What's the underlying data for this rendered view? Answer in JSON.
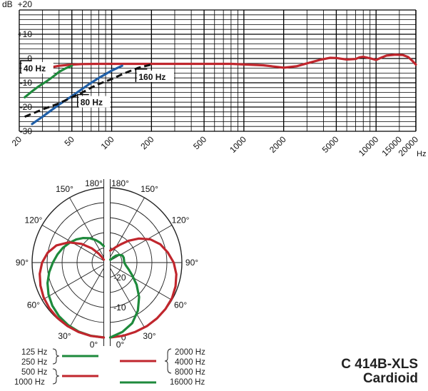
{
  "chart_data": [
    {
      "type": "line",
      "title": "",
      "xlabel": "",
      "ylabel": "",
      "x_unit": "Hz",
      "y_unit": "dB",
      "x_scale": "log",
      "xlim": [
        20,
        20000
      ],
      "ylim": [
        -30,
        20
      ],
      "grid": true,
      "x_ticks": [
        20,
        50,
        100,
        200,
        500,
        1000,
        2000,
        5000,
        10000,
        15000,
        20000
      ],
      "x_tick_labels": [
        "20",
        "50",
        "100",
        "200",
        "500",
        "1000",
        "2000",
        "5000",
        "10000",
        "15000",
        "20000"
      ],
      "y_ticks": [
        20,
        10,
        0,
        -10,
        -20,
        -30
      ],
      "y_tick_labels": [
        "+20",
        "+10",
        "0",
        "-10",
        "-20",
        "-30"
      ],
      "series": [
        {
          "name": "",
          "color": "#c0262d",
          "style": "solid",
          "x": [
            32,
            40,
            50,
            60,
            80,
            100,
            200,
            400,
            800,
            1400,
            1800,
            2000,
            2500,
            3000,
            3800,
            4500,
            5000,
            6000,
            7000,
            7500,
            8000,
            9000,
            10000,
            11000,
            12000,
            14000,
            16000,
            17500,
            19000,
            20000
          ],
          "y": [
            -4,
            -3,
            -2.5,
            -2.3,
            -2.2,
            -2.2,
            -2.2,
            -2.2,
            -2.2,
            -2.8,
            -3.5,
            -3.8,
            -3.2,
            -2,
            -0.5,
            0.3,
            0.2,
            -0.4,
            -0.2,
            0.5,
            0.7,
            0.1,
            -0.6,
            0.4,
            1.2,
            1.6,
            1.4,
            0.6,
            -1.2,
            -2.5
          ]
        },
        {
          "name": "",
          "color": "#1e8a3c",
          "style": "solid",
          "x": [
            22,
            25,
            28,
            32,
            36,
            40,
            45,
            50
          ],
          "y": [
            -16,
            -13.5,
            -11.5,
            -9.5,
            -7.5,
            -5.5,
            -4,
            -3
          ]
        },
        {
          "name": "",
          "color": "#1f5fa8",
          "style": "solid",
          "x": [
            25,
            30,
            40,
            50,
            60,
            70,
            80,
            100,
            120
          ],
          "y": [
            -27,
            -24,
            -19,
            -15.5,
            -12.5,
            -10,
            -8,
            -5,
            -3
          ]
        },
        {
          "name": "",
          "color": "#111111",
          "style": "dashed",
          "x": [
            22,
            30,
            40,
            50,
            60,
            70,
            80,
            100,
            120,
            140,
            160,
            200
          ],
          "y": [
            -24,
            -21,
            -18.5,
            -16,
            -14,
            -12,
            -10.5,
            -8.5,
            -6.5,
            -5,
            -3.8,
            -2.5
          ]
        }
      ],
      "annotations": [
        {
          "text": "40 Hz",
          "x": 21.5,
          "y": -5
        },
        {
          "text": "80 Hz",
          "x": 58,
          "y": -19
        },
        {
          "text": "160 Hz",
          "x": 160,
          "y": -8.5
        }
      ]
    },
    {
      "type": "polar",
      "title": "",
      "angle_labels": [
        "0°",
        "30°",
        "60°",
        "90°",
        "120°",
        "150°",
        "180°"
      ],
      "radius_labels": [
        "0",
        "-10",
        "-20"
      ],
      "rlim": [
        -25,
        0
      ],
      "series": [
        {
          "name": "",
          "side": "left",
          "color": "#1e8a3c",
          "angles": [
            0,
            10,
            20,
            30,
            40,
            50,
            60,
            70,
            80,
            90,
            100,
            110,
            120,
            130,
            140,
            150,
            160,
            170,
            180
          ],
          "db": [
            0,
            -0.2,
            -0.5,
            -1,
            -1.7,
            -2.6,
            -3.7,
            -5,
            -6.5,
            -8,
            -9.3,
            -10.5,
            -11.8,
            -13,
            -14.3,
            -15.6,
            -17,
            -18.3,
            -19.5
          ]
        },
        {
          "name": "",
          "side": "left",
          "color": "#c0262d",
          "angles": [
            0,
            10,
            20,
            30,
            40,
            50,
            60,
            70,
            80,
            90,
            100,
            110,
            120,
            130,
            140,
            150,
            160,
            170,
            180
          ],
          "db": [
            0,
            -0.15,
            -0.35,
            -0.6,
            -0.9,
            -1.3,
            -1.8,
            -2.5,
            -3.3,
            -4.4,
            -6,
            -8.2,
            -11.5,
            -15.3,
            -18.8,
            -21.5,
            -23,
            -23.8,
            -24
          ]
        },
        {
          "name": "",
          "side": "right",
          "color": "#c0262d",
          "angles": [
            0,
            10,
            20,
            30,
            40,
            50,
            60,
            70,
            80,
            90,
            100,
            110,
            120,
            130,
            140,
            150,
            160,
            170,
            180
          ],
          "db": [
            0,
            -0.2,
            -0.4,
            -0.5,
            -0.7,
            -0.9,
            -1.2,
            -1.8,
            -2.6,
            -3.8,
            -5.5,
            -7.2,
            -9.5,
            -12.5,
            -15.5,
            -18,
            -19.5,
            -20.5,
            -21
          ]
        },
        {
          "name": "",
          "side": "right",
          "color": "#1e8a3c",
          "angles": [
            0,
            10,
            20,
            30,
            40,
            50,
            60,
            70,
            80,
            90,
            100,
            110,
            120,
            130,
            140,
            150,
            160,
            170,
            180
          ],
          "db": [
            0,
            -1.5,
            -3.5,
            -6.5,
            -10,
            -13.5,
            -16.5,
            -18.5,
            -19.7,
            -20.3,
            -20.3,
            -20.2,
            -20.3,
            -21,
            -22,
            -23,
            -23.7,
            -24,
            -24
          ]
        }
      ]
    }
  ],
  "legend": {
    "left": [
      {
        "labels": [
          "125 Hz",
          "250 Hz"
        ],
        "color": "#1e8a3c"
      },
      {
        "labels": [
          "500 Hz",
          "1000 Hz"
        ],
        "color": "#c0262d"
      }
    ],
    "right": [
      {
        "labels": [
          "2000 Hz",
          "4000 Hz",
          "8000 Hz"
        ],
        "color": "#c0262d"
      },
      {
        "labels": [
          "16000 Hz"
        ],
        "color": "#1e8a3c"
      }
    ]
  },
  "model_title": "C 414B-XLS",
  "pattern_title": "Cardioid"
}
